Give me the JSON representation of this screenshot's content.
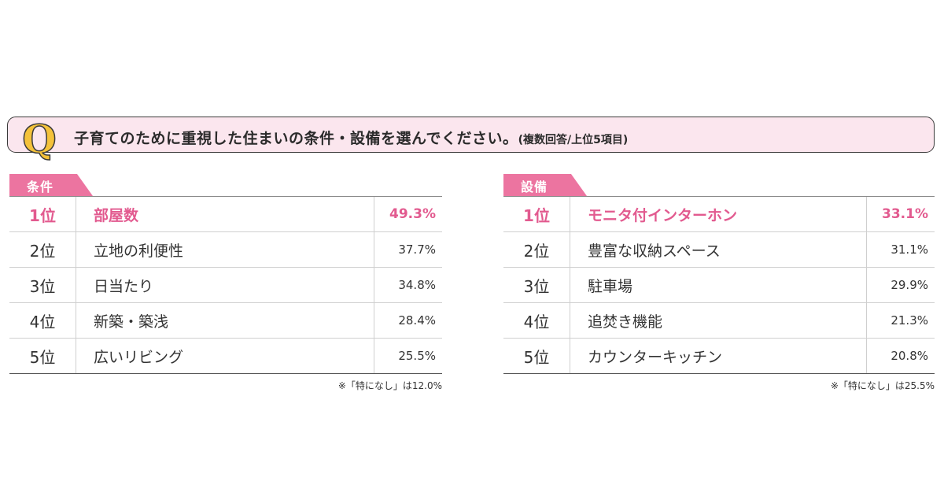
{
  "question": {
    "mark": "Q",
    "text": "子育てのために重視した住まいの条件・設備を選んでください。",
    "sub": "(複数回答/上位5項目)"
  },
  "colors": {
    "accent_pink": "#e25a8f",
    "tab_pink": "#ec74a0",
    "question_bg": "#fbe6ee",
    "q_mark": "#f4c23a"
  },
  "conditions": {
    "tab_label": "条件",
    "rows": [
      {
        "rank": "1位",
        "item": "部屋数",
        "pct": "49.3%"
      },
      {
        "rank": "2位",
        "item": "立地の利便性",
        "pct": "37.7%"
      },
      {
        "rank": "3位",
        "item": "日当たり",
        "pct": "34.8%"
      },
      {
        "rank": "4位",
        "item": "新築・築浅",
        "pct": "28.4%"
      },
      {
        "rank": "5位",
        "item": "広いリビング",
        "pct": "25.5%"
      }
    ],
    "note": "※「特になし」は12.0%"
  },
  "equipment": {
    "tab_label": "設備",
    "rows": [
      {
        "rank": "1位",
        "item": "モニタ付インターホン",
        "pct": "33.1%"
      },
      {
        "rank": "2位",
        "item": "豊富な収納スペース",
        "pct": "31.1%"
      },
      {
        "rank": "3位",
        "item": "駐車場",
        "pct": "29.9%"
      },
      {
        "rank": "4位",
        "item": "追焚き機能",
        "pct": "21.3%"
      },
      {
        "rank": "5位",
        "item": "カウンターキッチン",
        "pct": "20.8%"
      }
    ],
    "note": "※「特になし」は25.5%"
  }
}
